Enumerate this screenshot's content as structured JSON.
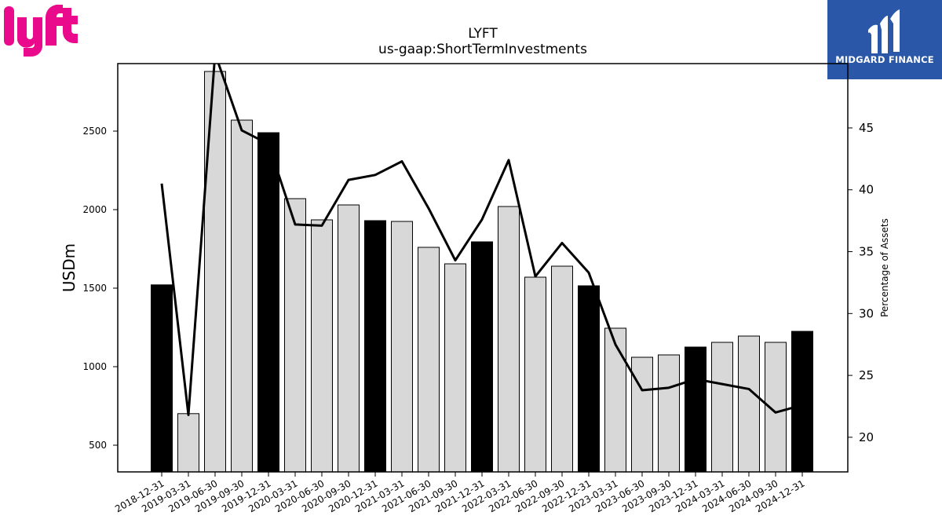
{
  "logos": {
    "left": {
      "name": "lyft-logo",
      "color": "#ea0b8c",
      "wordmark": "lyft"
    },
    "right": {
      "name": "midgard-finance-logo",
      "background": "#2a57a8",
      "wordmark": "MIDGARD FINANCE"
    }
  },
  "chart_data": {
    "type": "bar",
    "title": "LYFT",
    "subtitle": "us-gaap:ShortTermInvestments",
    "ylabel": "USDm",
    "y2label": "Percentage of Assets",
    "ylim": [
      330,
      2930
    ],
    "y2lim": [
      17.2,
      50.2
    ],
    "yticks": [
      500,
      1000,
      1500,
      2000,
      2500
    ],
    "y2ticks": [
      20,
      25,
      30,
      35,
      40,
      45
    ],
    "grid": false,
    "categories": [
      "2018-12-31",
      "2019-03-31",
      "2019-06-30",
      "2019-09-30",
      "2019-12-31",
      "2020-03-31",
      "2020-06-30",
      "2020-09-30",
      "2020-12-31",
      "2021-03-31",
      "2021-06-30",
      "2021-09-30",
      "2021-12-31",
      "2022-03-31",
      "2022-06-30",
      "2022-09-30",
      "2022-12-31",
      "2023-03-31",
      "2023-06-30",
      "2023-09-30",
      "2023-12-31",
      "2024-03-31",
      "2024-06-30",
      "2024-09-30",
      "2024-12-31"
    ],
    "series": [
      {
        "kind": "bar",
        "axis": "left",
        "values": [
          1521,
          701,
          2880,
          2570,
          2490,
          2070,
          1935,
          2030,
          1930,
          1925,
          1760,
          1655,
          1795,
          2020,
          1570,
          1640,
          1515,
          1245,
          1060,
          1075,
          1125,
          1155,
          1195,
          1155,
          1225
        ],
        "colors": [
          "#000000",
          "#d8d8d8",
          "#d8d8d8",
          "#d8d8d8",
          "#000000",
          "#d8d8d8",
          "#d8d8d8",
          "#d8d8d8",
          "#000000",
          "#d8d8d8",
          "#d8d8d8",
          "#d8d8d8",
          "#000000",
          "#d8d8d8",
          "#d8d8d8",
          "#d8d8d8",
          "#000000",
          "#d8d8d8",
          "#d8d8d8",
          "#d8d8d8",
          "#000000",
          "#d8d8d8",
          "#d8d8d8",
          "#d8d8d8",
          "#000000"
        ]
      },
      {
        "kind": "line",
        "axis": "right",
        "color": "#000000",
        "values": [
          40.5,
          21.8,
          51.0,
          44.8,
          43.7,
          37.2,
          37.1,
          40.8,
          41.2,
          42.3,
          38.5,
          34.3,
          37.6,
          42.4,
          33.0,
          35.7,
          33.3,
          27.5,
          23.8,
          24.0,
          24.7,
          24.3,
          23.9,
          22.0,
          22.6
        ]
      }
    ]
  }
}
